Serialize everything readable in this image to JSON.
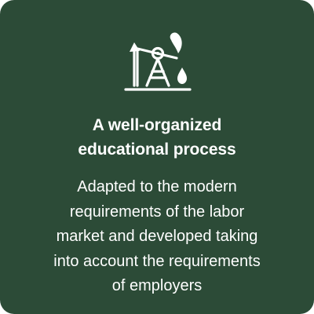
{
  "card": {
    "background_color": "#2c4b37",
    "text_color": "#ffffff",
    "icon": "oil-pump-jack-icon",
    "title_lines": [
      "A well-organized",
      "educational process"
    ],
    "body_lines": [
      "Adapted to the modern",
      "requirements of the labor",
      "market and developed taking",
      "into account the requirements",
      "of employers"
    ]
  }
}
